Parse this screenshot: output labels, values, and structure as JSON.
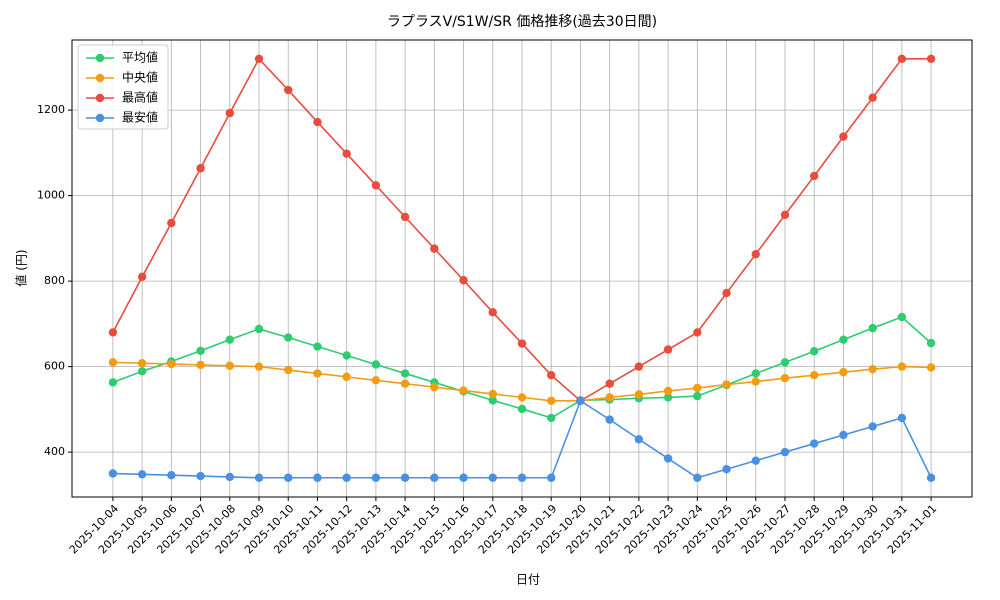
{
  "chart_data": {
    "type": "line",
    "title": "ラプラスV/S1W/SR 価格推移(過去30日間)",
    "x_label": "日付",
    "y_label": "値 (円)",
    "categories": [
      "2025-10-04",
      "2025-10-05",
      "2025-10-06",
      "2025-10-07",
      "2025-10-08",
      "2025-10-09",
      "2025-10-10",
      "2025-10-11",
      "2025-10-12",
      "2025-10-13",
      "2025-10-14",
      "2025-10-15",
      "2025-10-16",
      "2025-10-17",
      "2025-10-18",
      "2025-10-19",
      "2025-10-20",
      "2025-10-21",
      "2025-10-22",
      "2025-10-23",
      "2025-10-24",
      "2025-10-25",
      "2025-10-26",
      "2025-10-27",
      "2025-10-28",
      "2025-10-29",
      "2025-10-30",
      "2025-10-31",
      "2025-11-01"
    ],
    "series": [
      {
        "name": "平均値",
        "color": "#2ecc71",
        "values": [
          563,
          589,
          612,
          637,
          663,
          688,
          668,
          647,
          626,
          605,
          584,
          563,
          542,
          521,
          501,
          480,
          521,
          523,
          526,
          528,
          531,
          557,
          584,
          610,
          636,
          663,
          690,
          716,
          655
        ]
      },
      {
        "name": "中央値",
        "color": "#f39c12",
        "values": [
          610,
          608,
          606,
          604,
          602,
          600,
          592,
          584,
          576,
          568,
          560,
          552,
          544,
          536,
          528,
          520,
          520,
          528,
          535,
          543,
          550,
          558,
          565,
          573,
          580,
          587,
          594,
          600,
          598
        ]
      },
      {
        "name": "最高値",
        "color": "#e74c3c",
        "values": [
          680,
          810,
          936,
          1064,
          1193,
          1320,
          1247,
          1172,
          1098,
          1024,
          950,
          876,
          802,
          727,
          654,
          580,
          520,
          560,
          600,
          640,
          680,
          772,
          863,
          955,
          1046,
          1138,
          1229,
          1320,
          1320
        ]
      },
      {
        "name": "最安値",
        "color": "#4a90e2",
        "values": [
          350,
          348,
          346,
          344,
          342,
          340,
          340,
          340,
          340,
          340,
          340,
          340,
          340,
          340,
          340,
          340,
          520,
          476,
          430,
          385,
          340,
          360,
          380,
          400,
          420,
          440,
          460,
          480,
          340
        ]
      }
    ],
    "ylim": [
      295,
      1364
    ],
    "yticks": [
      400,
      600,
      800,
      1000,
      1200
    ],
    "grid": true,
    "legend": "upper-left"
  }
}
